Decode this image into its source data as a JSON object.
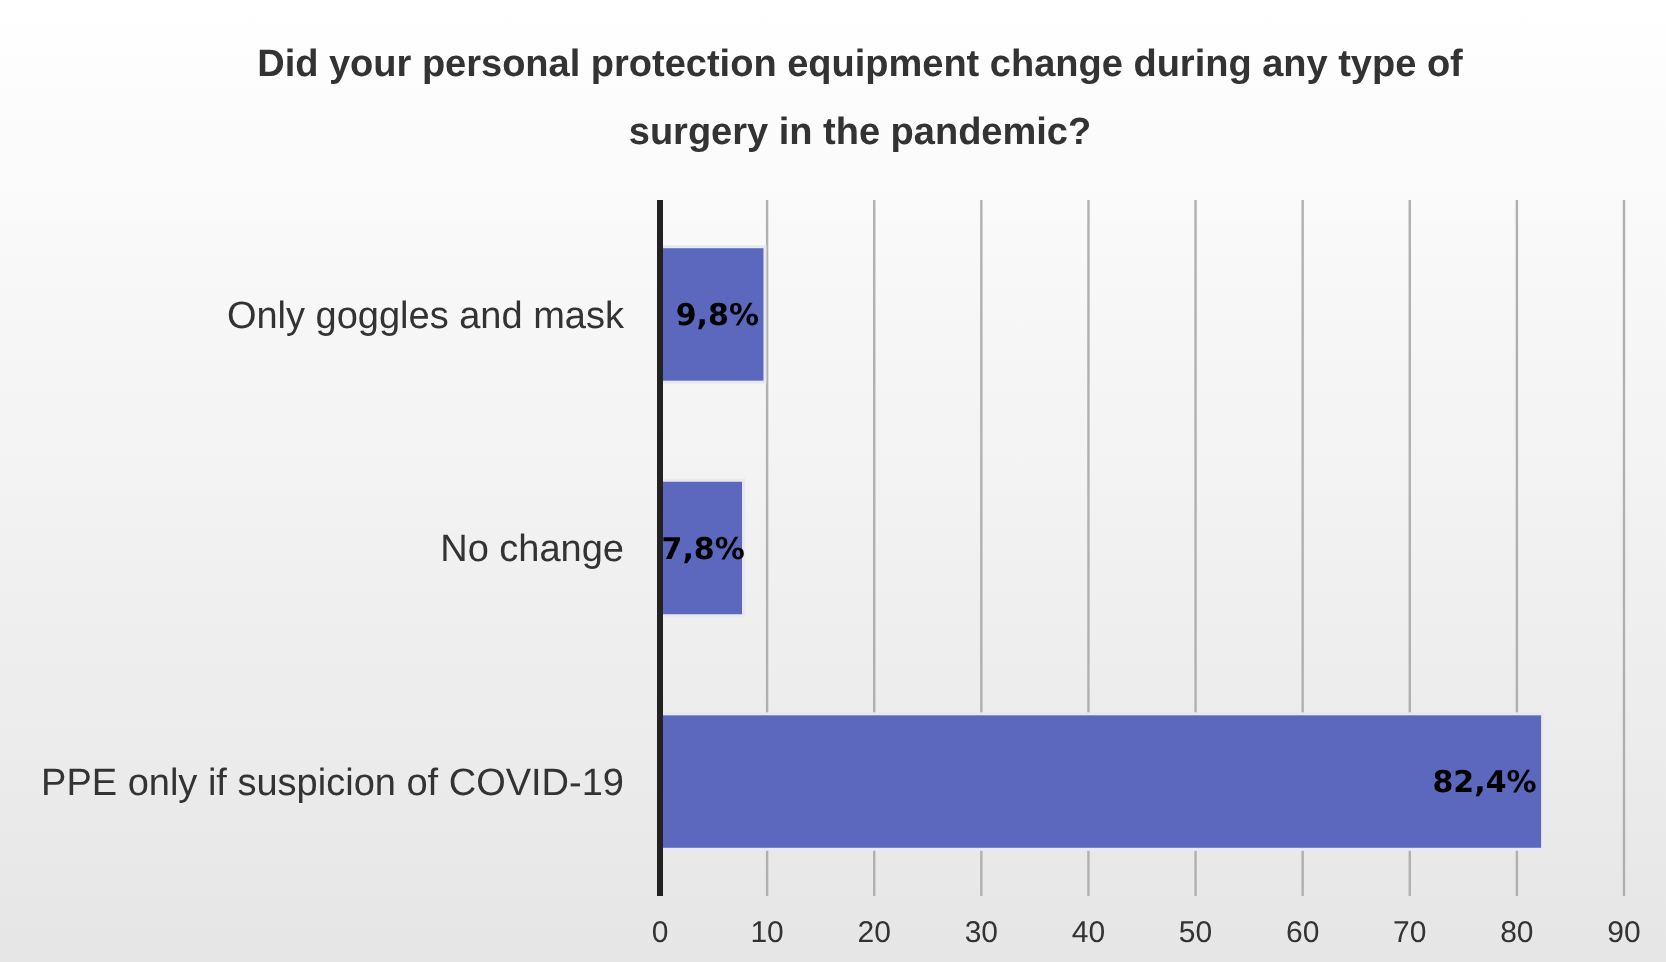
{
  "chart_data": {
    "type": "bar",
    "orientation": "horizontal",
    "title": "Did your personal protection equipment change during any type of surgery in the pandemic?",
    "categories": [
      "Only goggles and mask",
      "No change",
      "PPE only if suspicion of COVID-19"
    ],
    "values": [
      9.8,
      7.8,
      82.4
    ],
    "value_labels": [
      "9,8%",
      "7,8%",
      "82,4%"
    ],
    "color": "#5b68bd",
    "xlim": [
      0,
      90
    ],
    "xticks": [
      0,
      10,
      20,
      30,
      40,
      50,
      60,
      70,
      80,
      90
    ],
    "grid": "x"
  }
}
